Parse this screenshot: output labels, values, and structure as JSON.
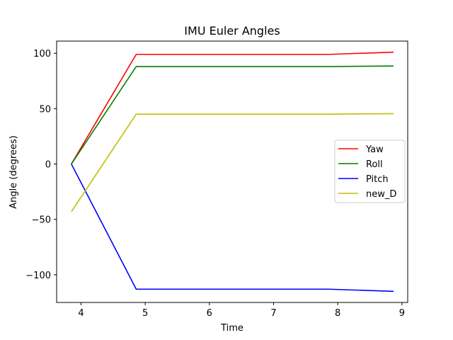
{
  "chart_data": {
    "type": "line",
    "title": "IMU Euler Angles",
    "xlabel": "Time",
    "ylabel": "Angle (degrees)",
    "xlim": [
      3.62,
      9.09
    ],
    "ylim": [
      -125,
      111
    ],
    "xticks": [
      4,
      5,
      6,
      7,
      8,
      9
    ],
    "xtick_labels": [
      "4",
      "5",
      "6",
      "7",
      "8",
      "9"
    ],
    "yticks": [
      100,
      50,
      0,
      -50,
      -100
    ],
    "ytick_labels": [
      "100",
      "50",
      "0",
      "−50",
      "−100"
    ],
    "grid": false,
    "legend_position": "center-right",
    "x": [
      3.85,
      4.86,
      7.86,
      8.87
    ],
    "series": [
      {
        "name": "Yaw",
        "color": "#ff0000",
        "values": [
          0,
          99,
          99,
          101
        ]
      },
      {
        "name": "Roll",
        "color": "#008000",
        "values": [
          0,
          88,
          88,
          88.5
        ]
      },
      {
        "name": "Pitch",
        "color": "#0000ff",
        "values": [
          0,
          -113,
          -113,
          -115
        ]
      },
      {
        "name": "new_D",
        "color": "#bfbf00",
        "values": [
          -43,
          45,
          45,
          45.5
        ]
      }
    ]
  }
}
